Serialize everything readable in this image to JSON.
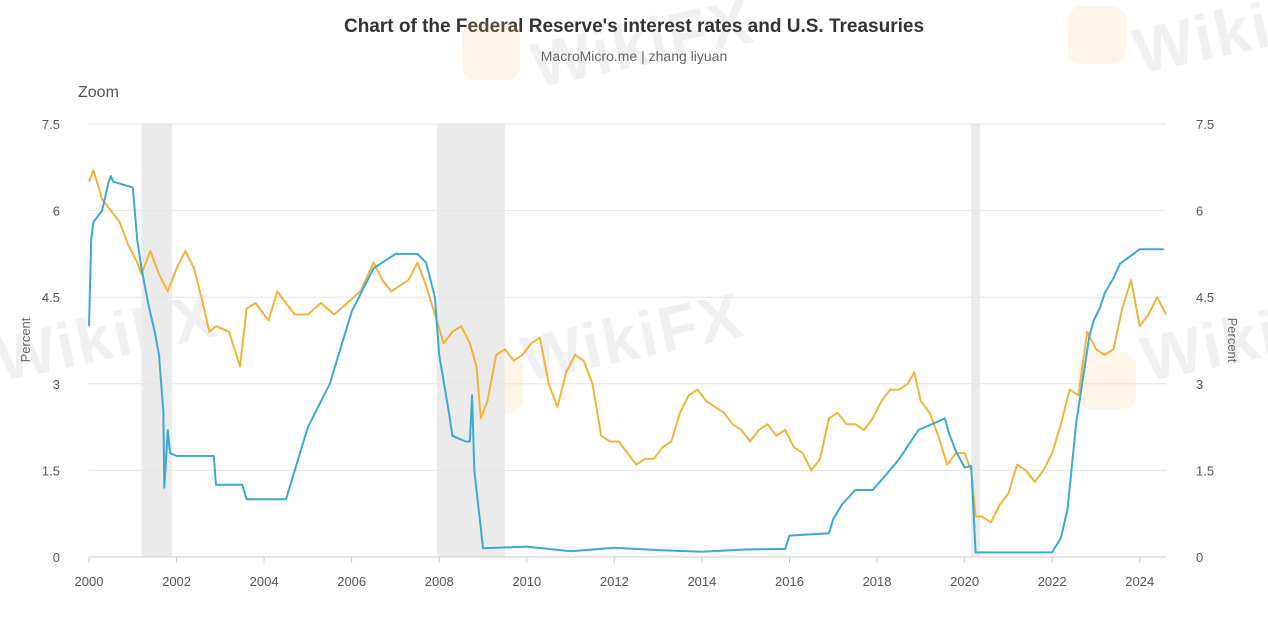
{
  "header": {
    "title": "Chart of the Federal Reserve's interest rates and U.S. Treasuries",
    "subtitle": "MacroMicro.me | zhang liyuan",
    "zoom_label": "Zoom"
  },
  "watermark": {
    "text": "WikiFX"
  },
  "chart_data": {
    "type": "line",
    "title": "Chart of the Federal Reserve's interest rates and U.S. Treasuries",
    "subtitle": "MacroMicro.me | zhang liyuan",
    "xlim": [
      2000.0,
      2024.6
    ],
    "ylim": [
      0,
      7.5
    ],
    "x_ticks": [
      "2000",
      "2002",
      "2004",
      "2006",
      "2008",
      "2010",
      "2012",
      "2014",
      "2016",
      "2018",
      "2020",
      "2022",
      "2024"
    ],
    "y_ticks": [
      "0",
      "1.5",
      "3",
      "4.5",
      "6",
      "7.5"
    ],
    "ylabel_left": "Percent",
    "ylabel_right": "Percent",
    "grid": true,
    "recession_shading": [
      [
        2001.2,
        2001.9
      ],
      [
        2007.95,
        2009.5
      ],
      [
        2020.15,
        2020.35
      ]
    ],
    "colors": {
      "fed_rate": "#3ca9d4",
      "treasury": "#f0b43c",
      "recession": "#ebebeb",
      "grid": "#e6e6e6"
    },
    "series": [
      {
        "key": "fed_rate",
        "x": [
          2000.0,
          2000.05,
          2000.1,
          2000.3,
          2000.45,
          2000.5,
          2000.55,
          2001.0,
          2001.1,
          2001.2,
          2001.35,
          2001.5,
          2001.6,
          2001.7,
          2001.72,
          2001.8,
          2001.85,
          2002.0,
          2002.5,
          2002.85,
          2002.9,
          2003.5,
          2003.6,
          2004.0,
          2004.5,
          2004.6,
          2005.0,
          2005.5,
          2006.0,
          2006.5,
          2007.0,
          2007.5,
          2007.7,
          2007.9,
          2008.0,
          2008.2,
          2008.3,
          2008.6,
          2008.7,
          2008.75,
          2008.8,
          2008.95,
          2009.0,
          2010.0,
          2011.0,
          2012.0,
          2013.0,
          2014.0,
          2015.0,
          2015.9,
          2016.0,
          2016.9,
          2017.0,
          2017.2,
          2017.5,
          2017.9,
          2018.2,
          2018.5,
          2018.7,
          2018.95,
          2019.55,
          2019.65,
          2019.8,
          2020.0,
          2020.15,
          2020.25,
          2021.0,
          2022.0,
          2022.2,
          2022.35,
          2022.45,
          2022.55,
          2022.7,
          2022.85,
          2022.95,
          2023.1,
          2023.2,
          2023.4,
          2023.55,
          2024.0,
          2024.55
        ],
        "y": [
          4.0,
          5.5,
          5.8,
          6.0,
          6.5,
          6.6,
          6.5,
          6.4,
          5.5,
          5.0,
          4.4,
          3.9,
          3.5,
          2.5,
          1.2,
          2.2,
          1.8,
          1.75,
          1.75,
          1.75,
          1.25,
          1.25,
          1.0,
          1.0,
          1.0,
          1.25,
          2.25,
          3.0,
          4.25,
          5.0,
          5.25,
          5.25,
          5.1,
          4.5,
          3.5,
          2.6,
          2.1,
          2.0,
          2.0,
          2.8,
          1.5,
          0.5,
          0.15,
          0.18,
          0.1,
          0.16,
          0.12,
          0.09,
          0.13,
          0.14,
          0.37,
          0.41,
          0.66,
          0.91,
          1.16,
          1.16,
          1.42,
          1.69,
          1.92,
          2.2,
          2.4,
          2.13,
          1.83,
          1.55,
          1.58,
          0.08,
          0.08,
          0.08,
          0.33,
          0.83,
          1.58,
          2.33,
          3.08,
          3.83,
          4.1,
          4.33,
          4.57,
          4.83,
          5.08,
          5.33,
          5.33
        ]
      },
      {
        "key": "treasury",
        "x": [
          2000.0,
          2000.1,
          2000.3,
          2000.5,
          2000.7,
          2000.9,
          2001.1,
          2001.2,
          2001.4,
          2001.6,
          2001.8,
          2002.0,
          2002.2,
          2002.4,
          2002.6,
          2002.75,
          2002.9,
          2003.2,
          2003.45,
          2003.6,
          2003.8,
          2004.1,
          2004.3,
          2004.5,
          2004.7,
          2005.0,
          2005.3,
          2005.6,
          2005.9,
          2006.2,
          2006.5,
          2006.7,
          2006.9,
          2007.1,
          2007.3,
          2007.5,
          2007.7,
          2007.9,
          2008.1,
          2008.3,
          2008.5,
          2008.7,
          2008.85,
          2008.95,
          2009.1,
          2009.3,
          2009.5,
          2009.7,
          2009.9,
          2010.1,
          2010.3,
          2010.5,
          2010.7,
          2010.9,
          2011.1,
          2011.3,
          2011.5,
          2011.7,
          2011.9,
          2012.1,
          2012.3,
          2012.5,
          2012.7,
          2012.9,
          2013.1,
          2013.3,
          2013.5,
          2013.7,
          2013.9,
          2014.1,
          2014.3,
          2014.5,
          2014.7,
          2014.9,
          2015.1,
          2015.3,
          2015.5,
          2015.7,
          2015.9,
          2016.1,
          2016.3,
          2016.5,
          2016.7,
          2016.9,
          2017.1,
          2017.3,
          2017.5,
          2017.7,
          2017.9,
          2018.1,
          2018.3,
          2018.5,
          2018.7,
          2018.85,
          2019.0,
          2019.2,
          2019.4,
          2019.6,
          2019.8,
          2020.0,
          2020.15,
          2020.25,
          2020.4,
          2020.6,
          2020.8,
          2021.0,
          2021.2,
          2021.4,
          2021.6,
          2021.8,
          2022.0,
          2022.2,
          2022.4,
          2022.6,
          2022.8,
          2023.0,
          2023.2,
          2023.4,
          2023.6,
          2023.8,
          2024.0,
          2024.2,
          2024.4,
          2024.6
        ],
        "y": [
          6.5,
          6.7,
          6.2,
          6.0,
          5.8,
          5.4,
          5.1,
          4.9,
          5.3,
          4.9,
          4.6,
          5.0,
          5.3,
          5.0,
          4.4,
          3.9,
          4.0,
          3.9,
          3.3,
          4.3,
          4.4,
          4.1,
          4.6,
          4.4,
          4.2,
          4.2,
          4.4,
          4.2,
          4.4,
          4.6,
          5.1,
          4.8,
          4.6,
          4.7,
          4.8,
          5.1,
          4.7,
          4.2,
          3.7,
          3.9,
          4.0,
          3.7,
          3.3,
          2.4,
          2.7,
          3.5,
          3.6,
          3.4,
          3.5,
          3.7,
          3.8,
          3.0,
          2.6,
          3.2,
          3.5,
          3.4,
          3.0,
          2.1,
          2.0,
          2.0,
          1.8,
          1.6,
          1.7,
          1.7,
          1.9,
          2.0,
          2.5,
          2.8,
          2.9,
          2.7,
          2.6,
          2.5,
          2.3,
          2.2,
          2.0,
          2.2,
          2.3,
          2.1,
          2.2,
          1.9,
          1.8,
          1.5,
          1.7,
          2.4,
          2.5,
          2.3,
          2.3,
          2.2,
          2.4,
          2.7,
          2.9,
          2.9,
          3.0,
          3.2,
          2.7,
          2.5,
          2.1,
          1.6,
          1.8,
          1.8,
          1.5,
          0.7,
          0.7,
          0.6,
          0.9,
          1.1,
          1.6,
          1.5,
          1.3,
          1.5,
          1.8,
          2.3,
          2.9,
          2.8,
          3.9,
          3.6,
          3.5,
          3.6,
          4.3,
          4.8,
          4.0,
          4.2,
          4.5,
          4.2
        ]
      }
    ]
  }
}
